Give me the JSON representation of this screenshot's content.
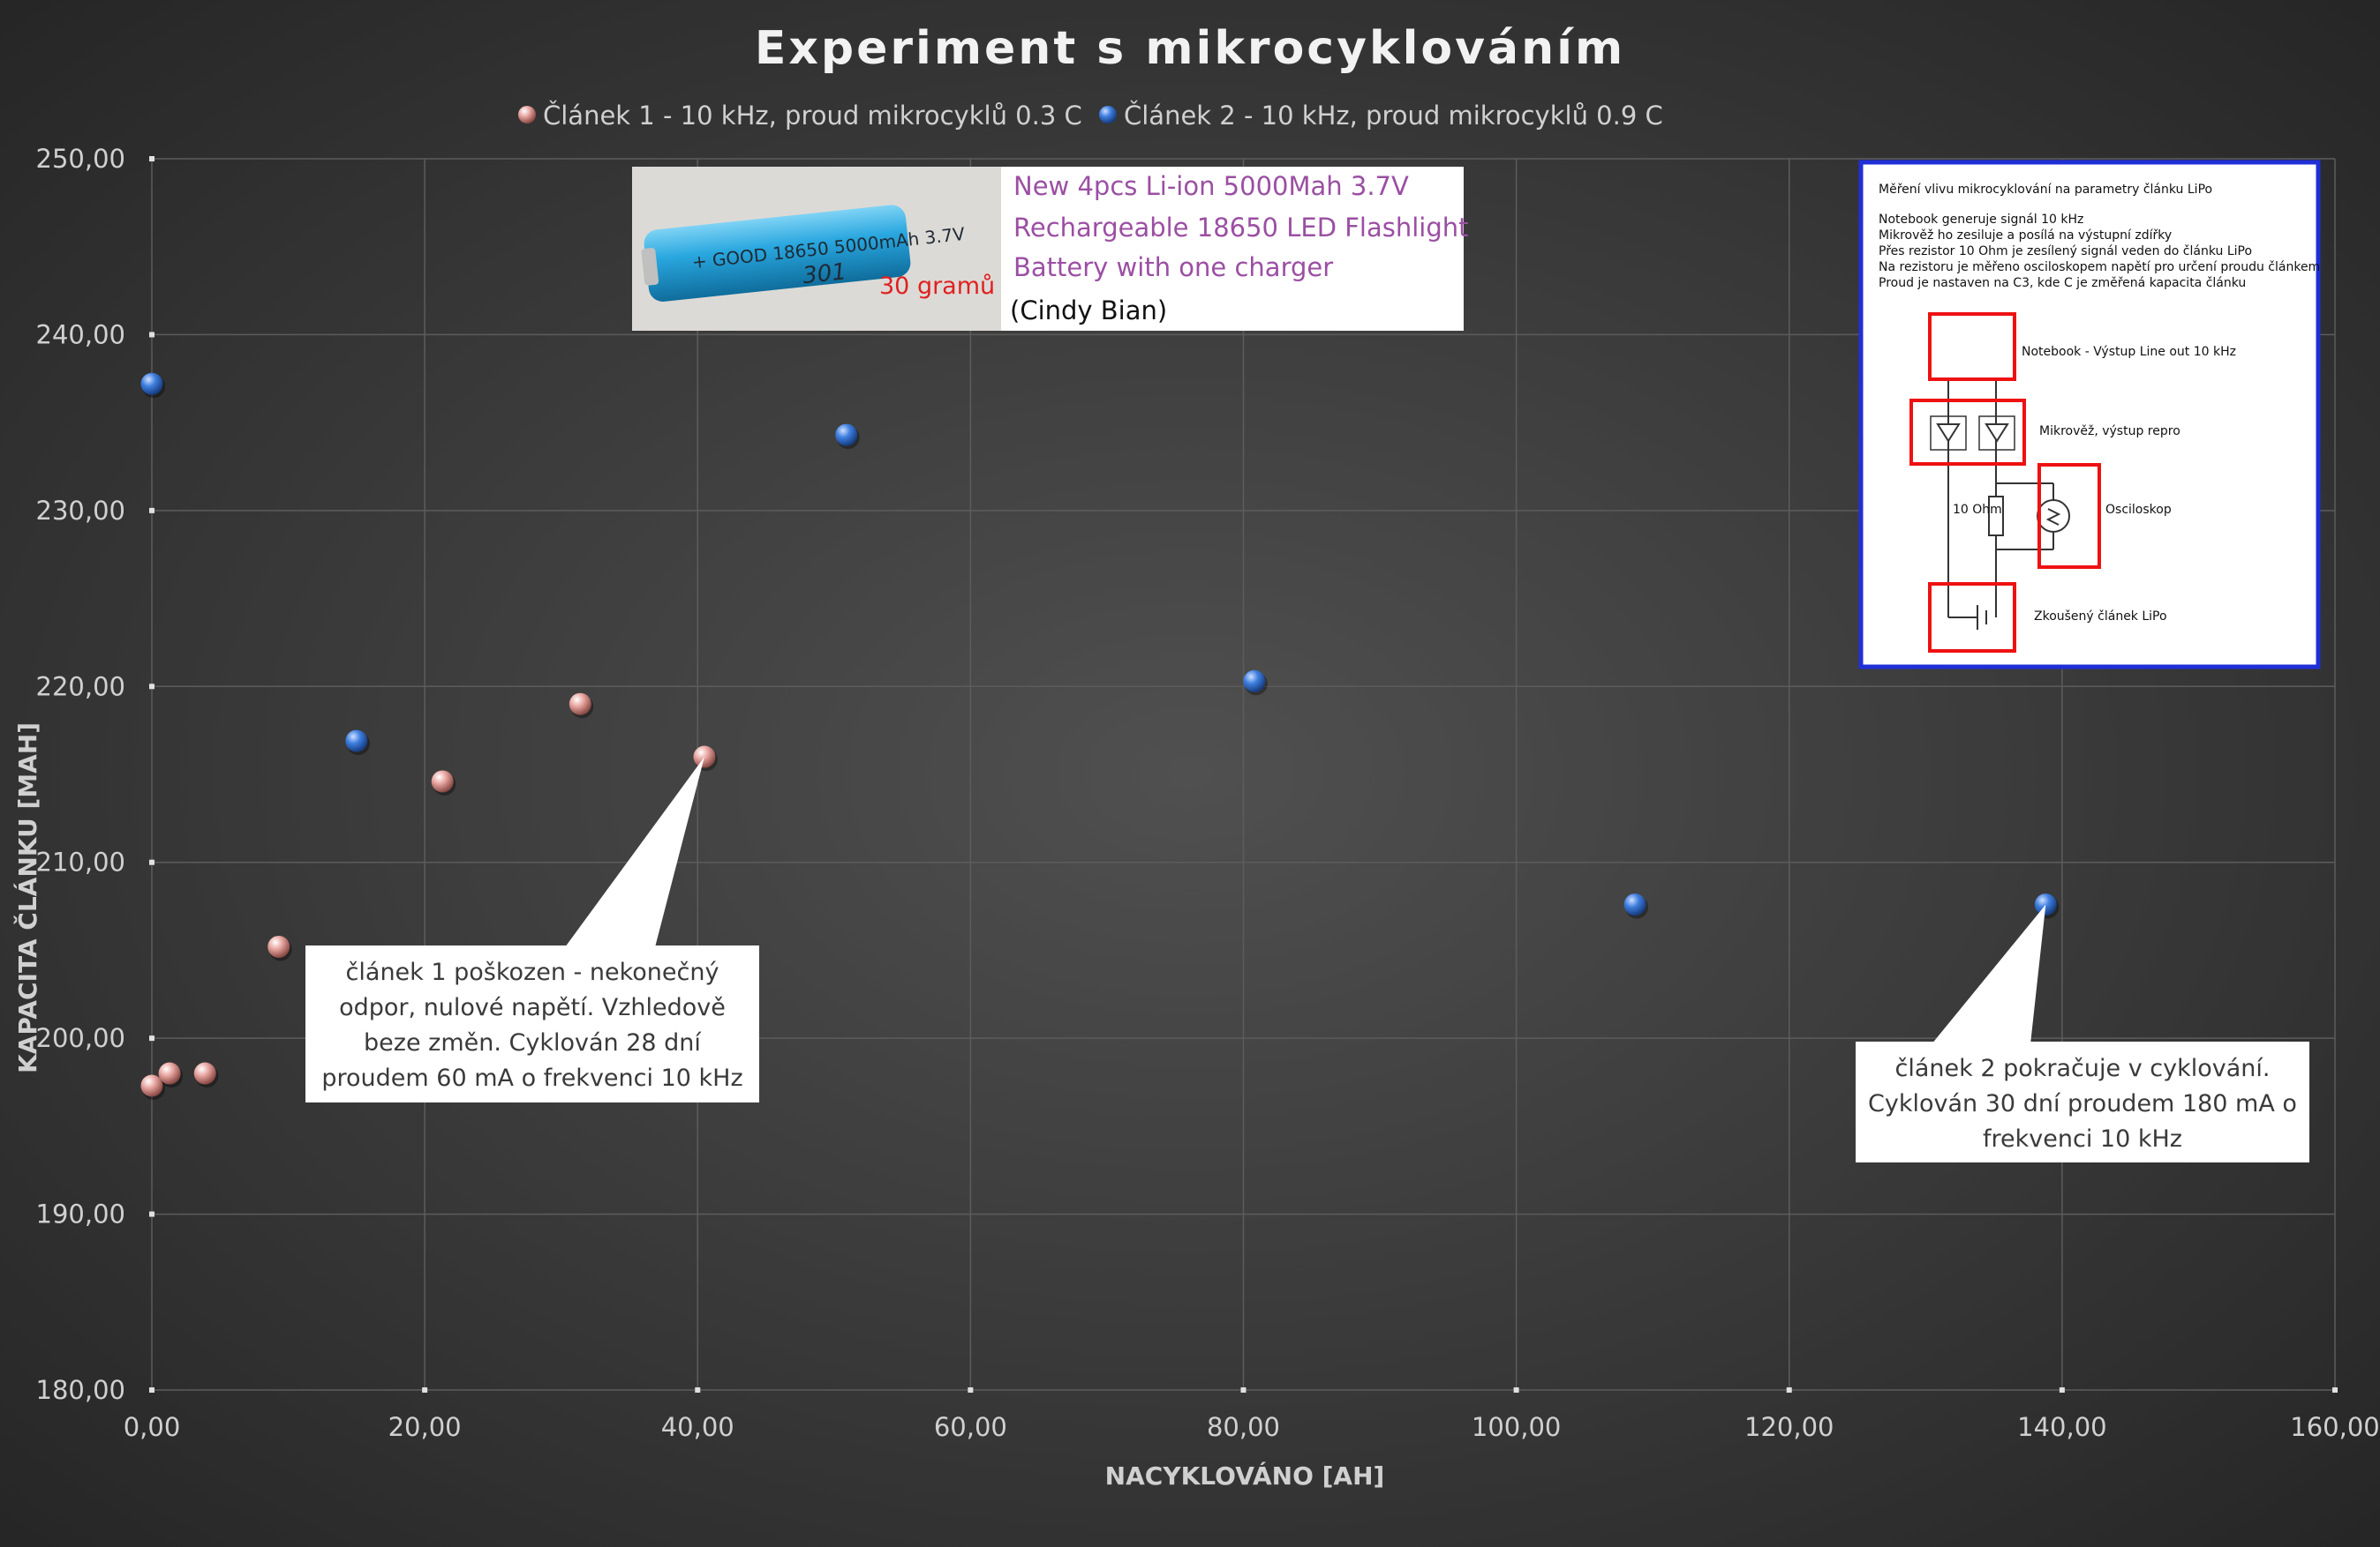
{
  "colors": {
    "bg_center": "#4d4d4d",
    "bg_edge": "#262626",
    "grid": "#5c5c5c",
    "axis_text": "#d0d0d0",
    "title_text": "#f2f2f2",
    "series1": "#e8a5a0",
    "series2": "#3f7fe0",
    "callout_bg": "#ffffff",
    "callout_text": "#3a3a3a",
    "inset_border": "#1f2fd8",
    "inset_red": "#ee1111",
    "ad_purple": "#9b4fa3",
    "ad_red": "#e02020",
    "battery": "#29a7df"
  },
  "chart_data": {
    "type": "scatter",
    "title": "Experiment s mikrocyklováním",
    "xlabel": "NACYKLOVÁNO [AH]",
    "ylabel": "KAPACITA ČLÁNKU [MAH]",
    "xlim": [
      0,
      160
    ],
    "ylim": [
      180,
      250
    ],
    "x_ticks": [
      0,
      20,
      40,
      60,
      80,
      100,
      120,
      140,
      160
    ],
    "x_tick_labels": [
      "0,00",
      "20,00",
      "40,00",
      "60,00",
      "80,00",
      "100,00",
      "120,00",
      "140,00",
      "160,00"
    ],
    "y_ticks": [
      180,
      190,
      200,
      210,
      220,
      230,
      240,
      250
    ],
    "y_tick_labels": [
      "180,00",
      "190,00",
      "200,00",
      "210,00",
      "220,00",
      "230,00",
      "240,00",
      "250,00"
    ],
    "grid": true,
    "legend_position": "top",
    "series": [
      {
        "name": "Článek 1 - 10 kHz, proud mikrocyklů 0.3 C",
        "color": "#e8a5a0",
        "points": [
          [
            0,
            197.3
          ],
          [
            1.3,
            198.0
          ],
          [
            3.9,
            198.0
          ],
          [
            9.3,
            205.2
          ],
          [
            21.3,
            214.6
          ],
          [
            31.4,
            219.0
          ],
          [
            40.5,
            216.0
          ]
        ]
      },
      {
        "name": "Článek 2 - 10 kHz, proud mikrocyklů 0.9 C",
        "color": "#3f7fe0",
        "points": [
          [
            0,
            237.2
          ],
          [
            15.0,
            216.9
          ],
          [
            50.9,
            234.3
          ],
          [
            80.8,
            220.3
          ],
          [
            108.7,
            207.6
          ],
          [
            138.8,
            207.6
          ]
        ]
      }
    ],
    "annotations": [
      {
        "id": "callout-1",
        "lines": [
          "článek 1 poškozen - nekonečný",
          "odpor, nulové napětí. Vzhledově",
          "beze změn. Cyklován 28 dní",
          "proudem 60 mA o frekvenci 10 kHz"
        ],
        "target": [
          40.5,
          216.0
        ]
      },
      {
        "id": "callout-2",
        "lines": [
          "článek 2 pokračuje v cyklování.",
          "Cyklován 30 dní proudem 180 mA o",
          "frekvenci 10 kHz"
        ],
        "target": [
          138.8,
          207.6
        ]
      }
    ]
  },
  "product_image": {
    "battery_label": "+ GOOD 18650 5000mAh 3.7V",
    "handwritten": "301",
    "weight": "30 gramů",
    "lines": [
      "New 4pcs Li-ion 5000Mah 3.7V",
      "Rechargeable 18650 LED Flashlight",
      "Battery with one charger"
    ],
    "seller": "(Cindy Bian)"
  },
  "schematic": {
    "intro": [
      "Měření vlivu mikrocyklování na parametry článku LiPo",
      "",
      "Notebook generuje signál 10 kHz",
      "Mikrověž ho zesiluje a posílá na výstupní zdířky",
      "Přes rezistor 10 Ohm je zesílený signál veden do článku LiPo",
      "Na rezistoru je měřeno osciloskopem napětí pro určení proudu článkem",
      "Proud je nastaven na C3, kde C je změřená kapacita článku"
    ],
    "notebook_label": "Notebook - Výstup Line out 10 kHz",
    "amp_label": "Mikrověž, výstup repro",
    "resistor_label": "10 Ohm",
    "scope_label": "Osciloskop",
    "battery_label": "Zkoušený článek LiPo"
  }
}
